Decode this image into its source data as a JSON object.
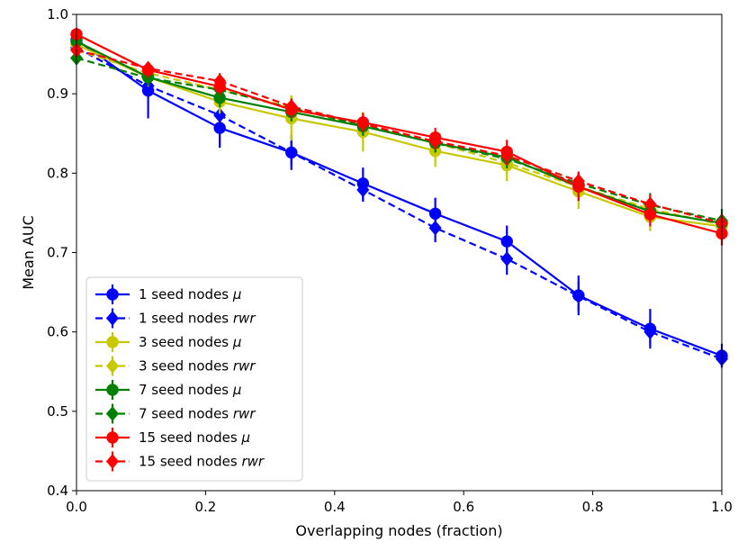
{
  "chart_data": {
    "type": "line",
    "title": "",
    "xlabel": "Overlapping nodes (fraction)",
    "ylabel": "Mean AUC",
    "xlim": [
      0.0,
      1.0
    ],
    "ylim": [
      0.4,
      1.0
    ],
    "xticks": [
      "0.0",
      "0.2",
      "0.4",
      "0.6",
      "0.8",
      "1.0"
    ],
    "yticks": [
      "0.4",
      "0.5",
      "0.6",
      "0.7",
      "0.8",
      "0.9",
      "1.0"
    ],
    "x": [
      0.0,
      0.111,
      0.222,
      0.333,
      0.444,
      0.556,
      0.667,
      0.778,
      0.889,
      1.0
    ],
    "legend_location": "lower-left",
    "series": [
      {
        "name": "1 seed nodes",
        "method": "μ",
        "style": "solid",
        "marker": "circle",
        "color": "#0000ff",
        "values": [
          0.968,
          0.904,
          0.857,
          0.826,
          0.787,
          0.749,
          0.714,
          0.646,
          0.604,
          0.57
        ],
        "errors": [
          0.01,
          0.035,
          0.025,
          0.022,
          0.02,
          0.02,
          0.02,
          0.025,
          0.025,
          0.015
        ]
      },
      {
        "name": "1 seed nodes",
        "method": "rwr",
        "style": "dashed",
        "marker": "diamond",
        "color": "#0000ff",
        "values": [
          0.958,
          0.91,
          0.873,
          0.826,
          0.779,
          0.731,
          0.692,
          0.645,
          0.6,
          0.566
        ],
        "errors": [
          0.008,
          0.015,
          0.015,
          0.015,
          0.015,
          0.018,
          0.02,
          0.018,
          0.015,
          0.01
        ]
      },
      {
        "name": "3 seed nodes",
        "method": "μ",
        "style": "solid",
        "marker": "circle",
        "color": "#c8c800",
        "values": [
          0.962,
          0.921,
          0.89,
          0.869,
          0.852,
          0.828,
          0.81,
          0.777,
          0.745,
          0.733
        ],
        "errors": [
          0.01,
          0.012,
          0.015,
          0.028,
          0.025,
          0.02,
          0.02,
          0.022,
          0.018,
          0.012
        ]
      },
      {
        "name": "3 seed nodes",
        "method": "rwr",
        "style": "dashed",
        "marker": "diamond",
        "color": "#c8c800",
        "values": [
          0.955,
          0.926,
          0.905,
          0.883,
          0.86,
          0.838,
          0.813,
          0.783,
          0.755,
          0.735
        ],
        "errors": [
          0.008,
          0.01,
          0.012,
          0.015,
          0.015,
          0.015,
          0.015,
          0.015,
          0.015,
          0.012
        ]
      },
      {
        "name": "7 seed nodes",
        "method": "μ",
        "style": "solid",
        "marker": "circle",
        "color": "#008000",
        "values": [
          0.966,
          0.921,
          0.895,
          0.877,
          0.859,
          0.838,
          0.82,
          0.783,
          0.752,
          0.737
        ],
        "errors": [
          0.01,
          0.01,
          0.012,
          0.012,
          0.012,
          0.012,
          0.012,
          0.012,
          0.012,
          0.01
        ]
      },
      {
        "name": "7 seed nodes",
        "method": "rwr",
        "style": "dashed",
        "marker": "diamond",
        "color": "#008000",
        "values": [
          0.945,
          0.92,
          0.905,
          0.882,
          0.86,
          0.838,
          0.818,
          0.787,
          0.76,
          0.74
        ],
        "errors": [
          0.008,
          0.01,
          0.01,
          0.012,
          0.012,
          0.012,
          0.012,
          0.012,
          0.015,
          0.015
        ]
      },
      {
        "name": "15 seed nodes",
        "method": "μ",
        "style": "solid",
        "marker": "circle",
        "color": "#ff0000",
        "values": [
          0.975,
          0.93,
          0.909,
          0.88,
          0.864,
          0.845,
          0.827,
          0.783,
          0.748,
          0.724
        ],
        "errors": [
          0.008,
          0.01,
          0.01,
          0.01,
          0.012,
          0.012,
          0.015,
          0.018,
          0.015,
          0.015
        ]
      },
      {
        "name": "15 seed nodes",
        "method": "rwr",
        "style": "dashed",
        "marker": "diamond",
        "color": "#ff0000",
        "values": [
          0.955,
          0.932,
          0.916,
          0.884,
          0.862,
          0.84,
          0.822,
          0.79,
          0.761,
          0.737
        ],
        "errors": [
          0.008,
          0.008,
          0.01,
          0.01,
          0.01,
          0.01,
          0.012,
          0.012,
          0.012,
          0.012
        ]
      }
    ]
  }
}
